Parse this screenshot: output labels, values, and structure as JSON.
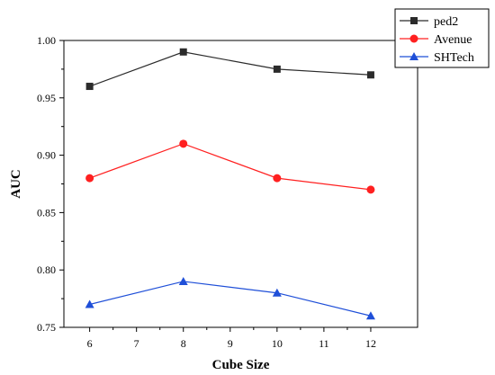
{
  "chart_data": {
    "type": "line",
    "title": "",
    "xlabel": "Cube Size",
    "ylabel": "AUC",
    "x": [
      6,
      8,
      10,
      12
    ],
    "xlim": [
      5.45,
      13.0
    ],
    "ylim": [
      0.75,
      1.0
    ],
    "x_ticks": [
      6,
      7,
      8,
      9,
      10,
      11,
      12
    ],
    "y_ticks": [
      0.75,
      0.8,
      0.85,
      0.9,
      0.95,
      1.0
    ],
    "y_tick_labels": [
      "0.75",
      "0.80",
      "0.85",
      "0.90",
      "0.95",
      "1.00"
    ],
    "grid": false,
    "legend_position": "top-right",
    "series": [
      {
        "name": "ped2",
        "values": [
          0.96,
          0.99,
          0.975,
          0.97
        ],
        "color": "#2b2b2b",
        "marker": "square"
      },
      {
        "name": "Avenue",
        "values": [
          0.88,
          0.91,
          0.88,
          0.87
        ],
        "color": "#ff2020",
        "marker": "circle"
      },
      {
        "name": "SHTech",
        "values": [
          0.77,
          0.79,
          0.78,
          0.76
        ],
        "color": "#1f4fd8",
        "marker": "triangle"
      }
    ]
  }
}
